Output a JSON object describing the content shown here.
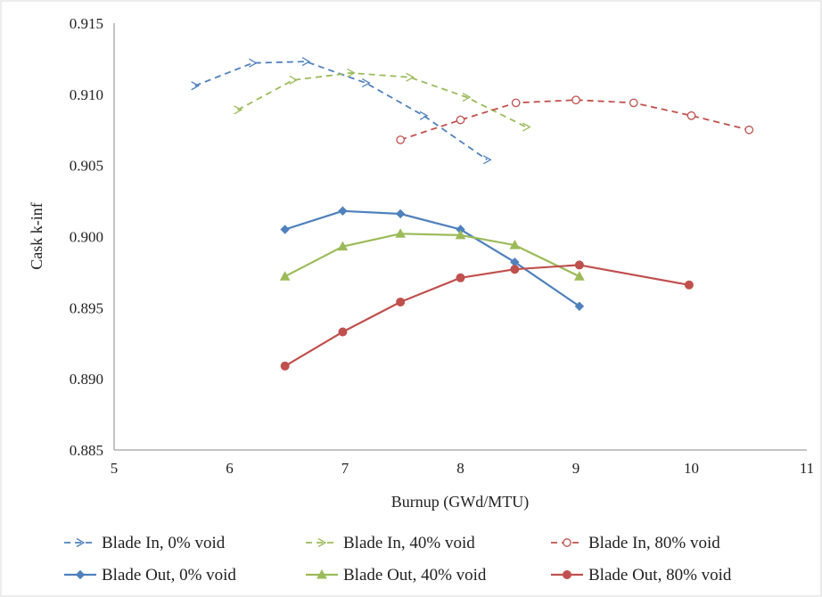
{
  "chart_data": {
    "type": "line",
    "title": "",
    "xlabel": "Burnup (GWd/MTU)",
    "ylabel": "Cask k-inf",
    "xlim": [
      5,
      11
    ],
    "ylim": [
      0.885,
      0.915
    ],
    "x_ticks": [
      5,
      6,
      7,
      8,
      9,
      10,
      11
    ],
    "y_ticks": [
      0.885,
      0.89,
      0.895,
      0.9,
      0.905,
      0.91,
      0.915
    ],
    "x_tick_labels": [
      "5",
      "6",
      "7",
      "8",
      "9",
      "10",
      "11"
    ],
    "y_tick_labels": [
      "0.885",
      "0.890",
      "0.895",
      "0.900",
      "0.905",
      "0.910",
      "0.915"
    ],
    "grid": false,
    "legend_position": "bottom",
    "series": [
      {
        "name": "Blade In, 0% void",
        "color": "#4f81bd",
        "line_style": "dashed",
        "marker": "arrow",
        "points": [
          [
            5.7,
            0.9106
          ],
          [
            6.2,
            0.9122
          ],
          [
            6.66,
            0.9123
          ],
          [
            7.18,
            0.9108
          ],
          [
            7.68,
            0.9085
          ],
          [
            8.23,
            0.9054
          ]
        ]
      },
      {
        "name": "Blade In, 40% void",
        "color": "#9bbb59",
        "line_style": "dashed",
        "marker": "arrow",
        "points": [
          [
            6.07,
            0.9089
          ],
          [
            6.55,
            0.911
          ],
          [
            7.05,
            0.9115
          ],
          [
            7.56,
            0.9112
          ],
          [
            8.05,
            0.9098
          ],
          [
            8.57,
            0.9077
          ]
        ]
      },
      {
        "name": "Blade In, 80% void",
        "color": "#c0504d",
        "line_style": "dashed",
        "marker": "open-circle",
        "points": [
          [
            7.48,
            0.9068
          ],
          [
            8.0,
            0.9082
          ],
          [
            8.48,
            0.9094
          ],
          [
            9.0,
            0.9096
          ],
          [
            9.5,
            0.9094
          ],
          [
            10.0,
            0.9085
          ],
          [
            10.5,
            0.9075
          ]
        ]
      },
      {
        "name": "Blade Out, 0% void",
        "color": "#4f81bd",
        "line_style": "solid",
        "marker": "diamond",
        "points": [
          [
            6.48,
            0.9005
          ],
          [
            6.98,
            0.9018
          ],
          [
            7.48,
            0.9016
          ],
          [
            8.0,
            0.9005
          ],
          [
            8.47,
            0.8982
          ],
          [
            9.03,
            0.8951
          ]
        ]
      },
      {
        "name": "Blade Out, 40% void",
        "color": "#9bbb59",
        "line_style": "solid",
        "marker": "triangle",
        "points": [
          [
            6.48,
            0.8972
          ],
          [
            6.98,
            0.8993
          ],
          [
            7.48,
            0.9002
          ],
          [
            8.0,
            0.9001
          ],
          [
            8.47,
            0.8994
          ],
          [
            9.03,
            0.8972
          ]
        ]
      },
      {
        "name": "Blade Out, 80% void",
        "color": "#c0504d",
        "line_style": "solid",
        "marker": "filled-circle",
        "points": [
          [
            6.48,
            0.8909
          ],
          [
            6.98,
            0.8933
          ],
          [
            7.48,
            0.8954
          ],
          [
            8.0,
            0.8971
          ],
          [
            8.47,
            0.8977
          ],
          [
            9.03,
            0.898
          ],
          [
            9.98,
            0.8966
          ]
        ]
      }
    ]
  }
}
